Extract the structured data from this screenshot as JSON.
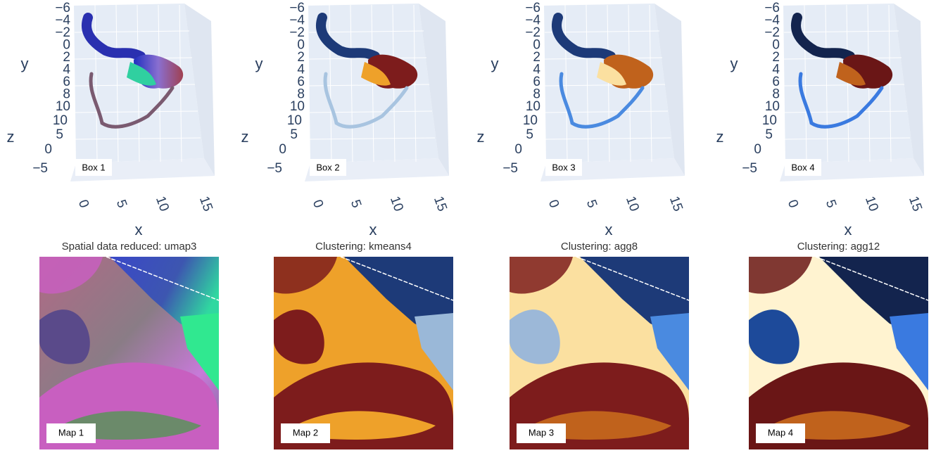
{
  "panels": [
    {
      "y_axis_title": "y",
      "z_axis_title": "z",
      "x_axis_title": "x",
      "y_ticks": [
        "−6",
        "−4",
        "−2",
        "0",
        "2",
        "4",
        "6",
        "8",
        "10"
      ],
      "z_ticks": [
        "10",
        "5",
        "0",
        "−5"
      ],
      "x_ticks": [
        "0",
        "5",
        "10",
        "15"
      ],
      "box_label": "Box 1",
      "map_title": "Spatial data reduced: umap3",
      "map_label": "Map 1"
    },
    {
      "y_axis_title": "y",
      "z_axis_title": "z",
      "x_axis_title": "x",
      "y_ticks": [
        "−6",
        "−4",
        "−2",
        "0",
        "2",
        "4",
        "6",
        "8",
        "10"
      ],
      "z_ticks": [
        "10",
        "5",
        "0",
        "−5"
      ],
      "x_ticks": [
        "0",
        "5",
        "10",
        "15"
      ],
      "box_label": "Box 2",
      "map_title": "Clustering: kmeans4",
      "map_label": "Map 2"
    },
    {
      "y_axis_title": "y",
      "z_axis_title": "z",
      "x_axis_title": "x",
      "y_ticks": [
        "−6",
        "−4",
        "−2",
        "0",
        "2",
        "4",
        "6",
        "8",
        "10"
      ],
      "z_ticks": [
        "10",
        "5",
        "0",
        "−5"
      ],
      "x_ticks": [
        "0",
        "5",
        "10",
        "15"
      ],
      "box_label": "Box 3",
      "map_title": "Clustering: agg8",
      "map_label": "Map 3"
    },
    {
      "y_axis_title": "y",
      "z_axis_title": "z",
      "x_axis_title": "x",
      "y_ticks": [
        "−6",
        "−4",
        "−2",
        "0",
        "2",
        "4",
        "6",
        "8",
        "10"
      ],
      "z_ticks": [
        "10",
        "5",
        "0",
        "−5"
      ],
      "x_ticks": [
        "0",
        "5",
        "10",
        "15"
      ],
      "box_label": "Box 4",
      "map_title": "Clustering: agg12",
      "map_label": "Map 4"
    }
  ]
}
